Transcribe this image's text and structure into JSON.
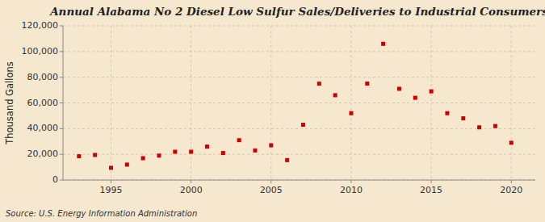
{
  "chart_data": {
    "type": "scatter",
    "title": "Annual Alabama No 2 Diesel Low Sulfur Sales/Deliveries to Industrial Consumers",
    "ylabel": "Thousand Gallons",
    "annotations": [
      "Source: U.S. Energy Information Administration"
    ],
    "x": [
      1993,
      1994,
      1995,
      1996,
      1997,
      1998,
      1999,
      2000,
      2001,
      2002,
      2003,
      2004,
      2005,
      2006,
      2007,
      2008,
      2009,
      2010,
      2011,
      2012,
      2013,
      2014,
      2015,
      2016,
      2017,
      2018,
      2019,
      2020
    ],
    "values": [
      18500,
      19500,
      9500,
      12000,
      17000,
      19000,
      22000,
      22000,
      26000,
      21000,
      31000,
      23000,
      27000,
      15500,
      43000,
      75000,
      66000,
      52000,
      75000,
      106000,
      71000,
      64000,
      69000,
      52000,
      48000,
      41000,
      42000,
      29000
    ],
    "color": "#cc0000",
    "marker": "square",
    "xlim": [
      1992,
      2021.5
    ],
    "ylim": [
      0,
      120000
    ],
    "xticks": [
      1995,
      2000,
      2005,
      2010,
      2015,
      2020
    ],
    "yticks": [
      0,
      {
        "value": 20000,
        "label": "20,000"
      },
      {
        "value": 40000,
        "label": "40,000"
      },
      {
        "value": 60000,
        "label": "60,000"
      },
      {
        "value": 80000,
        "label": "80,000"
      },
      {
        "value": 100000,
        "label": "100,000"
      },
      {
        "value": 120000,
        "label": "120,000"
      }
    ],
    "grid": true
  }
}
